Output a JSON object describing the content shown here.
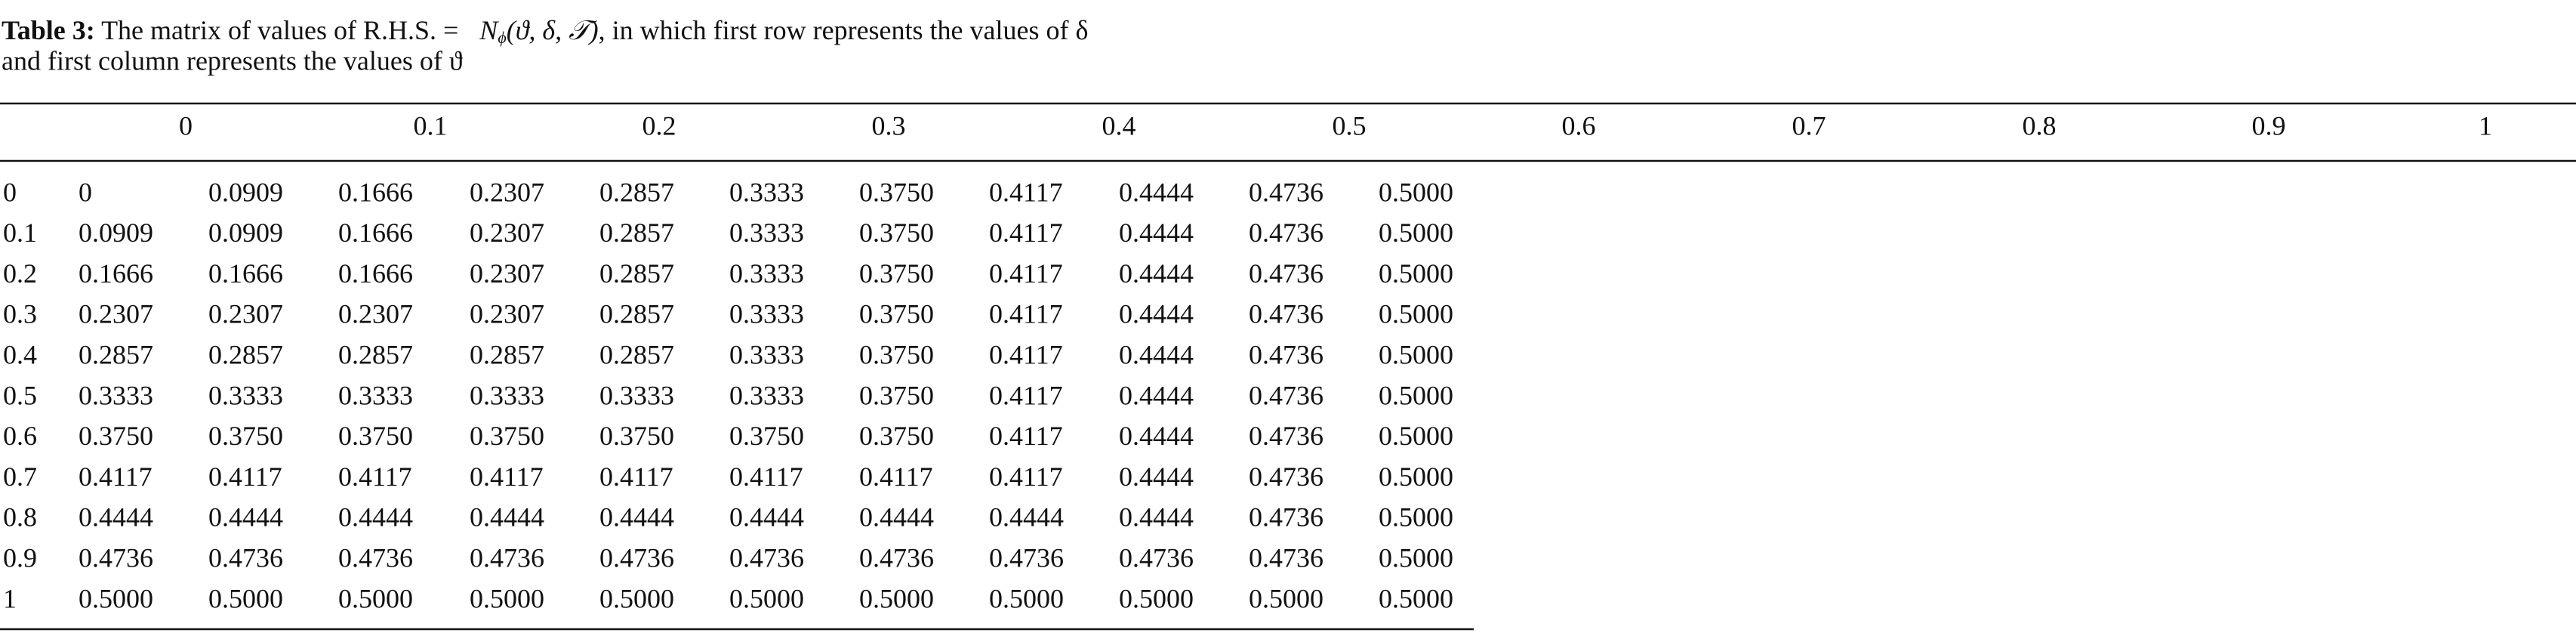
{
  "caption": {
    "label": "Table 3:",
    "text_before": "The matrix of values of R.H.S. =",
    "math_name": "N",
    "math_subscript": "ϕ",
    "math_args": "(ϑ, δ, 𝒯)",
    "text_after": ", in which first row represents the values of δ",
    "line2": "and first column represents the values of ϑ"
  },
  "table": {
    "header": [
      "0",
      "0.1",
      "0.2",
      "0.3",
      "0.4",
      "0.5",
      "0.6",
      "0.7",
      "0.8",
      "0.9",
      "1"
    ],
    "rows": [
      [
        "0",
        "0",
        "0.0909",
        "0.1666",
        "0.2307",
        "0.2857",
        "0.3333",
        "0.3750",
        "0.4117",
        "0.4444",
        "0.4736",
        "0.5000"
      ],
      [
        "0.1",
        "0.0909",
        "0.0909",
        "0.1666",
        "0.2307",
        "0.2857",
        "0.3333",
        "0.3750",
        "0.4117",
        "0.4444",
        "0.4736",
        "0.5000"
      ],
      [
        "0.2",
        "0.1666",
        "0.1666",
        "0.1666",
        "0.2307",
        "0.2857",
        "0.3333",
        "0.3750",
        "0.4117",
        "0.4444",
        "0.4736",
        "0.5000"
      ],
      [
        "0.3",
        "0.2307",
        "0.2307",
        "0.2307",
        "0.2307",
        "0.2857",
        "0.3333",
        "0.3750",
        "0.4117",
        "0.4444",
        "0.4736",
        "0.5000"
      ],
      [
        "0.4",
        "0.2857",
        "0.2857",
        "0.2857",
        "0.2857",
        "0.2857",
        "0.3333",
        "0.3750",
        "0.4117",
        "0.4444",
        "0.4736",
        "0.5000"
      ],
      [
        "0.5",
        "0.3333",
        "0.3333",
        "0.3333",
        "0.3333",
        "0.3333",
        "0.3333",
        "0.3750",
        "0.4117",
        "0.4444",
        "0.4736",
        "0.5000"
      ],
      [
        "0.6",
        "0.3750",
        "0.3750",
        "0.3750",
        "0.3750",
        "0.3750",
        "0.3750",
        "0.3750",
        "0.4117",
        "0.4444",
        "0.4736",
        "0.5000"
      ],
      [
        "0.7",
        "0.4117",
        "0.4117",
        "0.4117",
        "0.4117",
        "0.4117",
        "0.4117",
        "0.4117",
        "0.4117",
        "0.4444",
        "0.4736",
        "0.5000"
      ],
      [
        "0.8",
        "0.4444",
        "0.4444",
        "0.4444",
        "0.4444",
        "0.4444",
        "0.4444",
        "0.4444",
        "0.4444",
        "0.4444",
        "0.4736",
        "0.5000"
      ],
      [
        "0.9",
        "0.4736",
        "0.4736",
        "0.4736",
        "0.4736",
        "0.4736",
        "0.4736",
        "0.4736",
        "0.4736",
        "0.4736",
        "0.4736",
        "0.5000"
      ],
      [
        "1",
        "0.5000",
        "0.5000",
        "0.5000",
        "0.5000",
        "0.5000",
        "0.5000",
        "0.5000",
        "0.5000",
        "0.5000",
        "0.5000",
        "0.5000"
      ]
    ]
  }
}
